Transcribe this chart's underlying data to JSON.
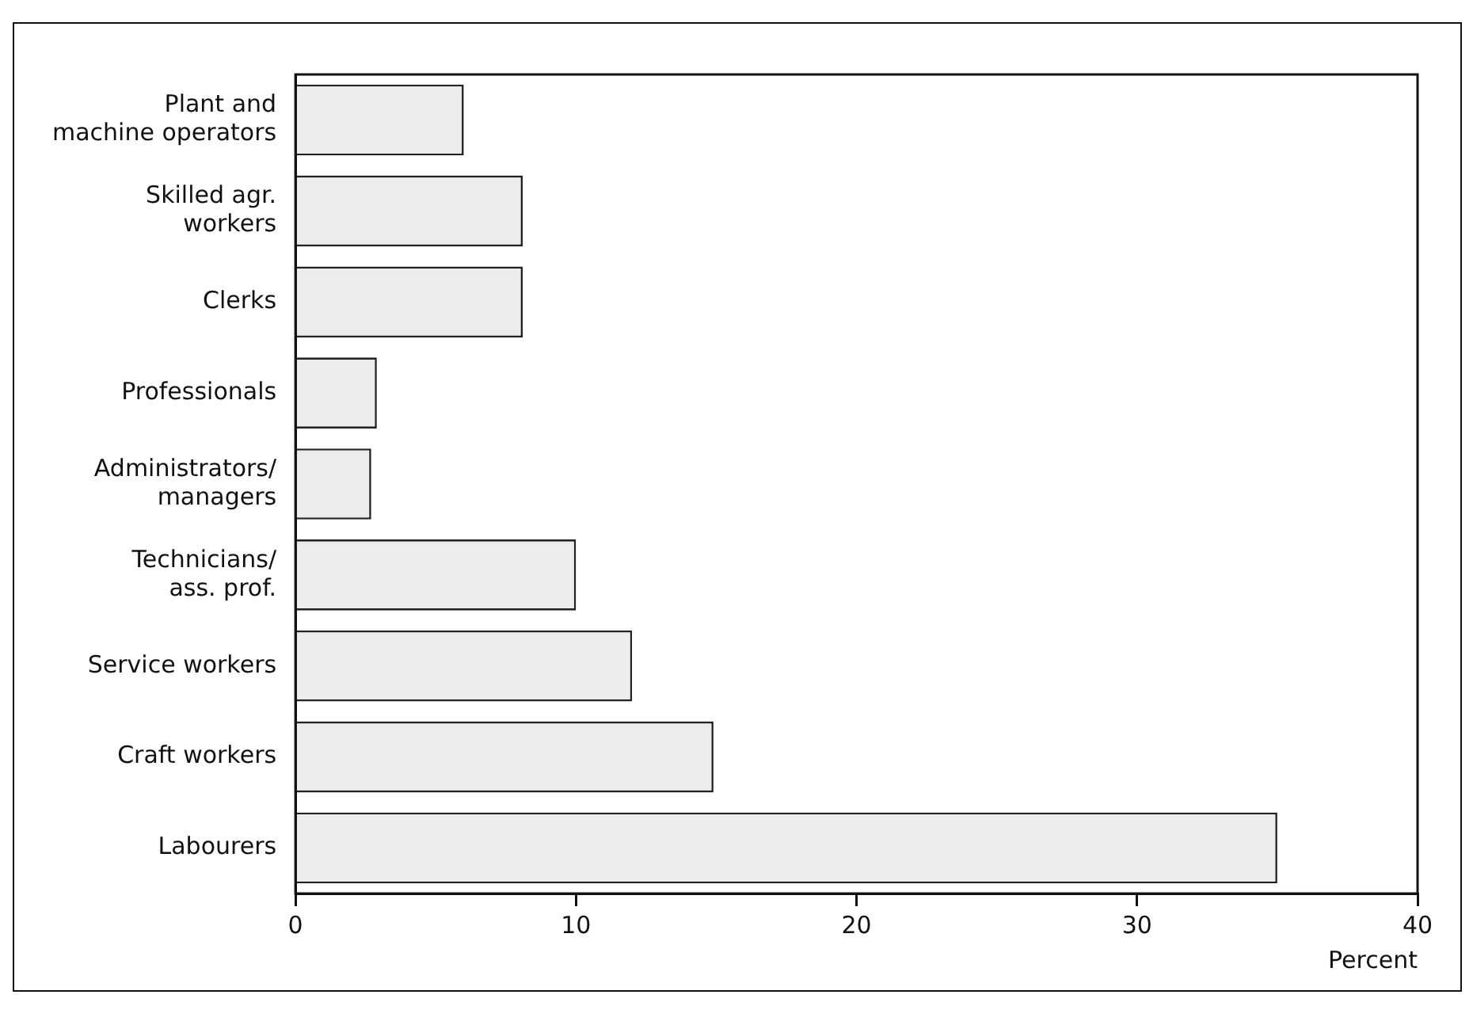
{
  "chart_data": {
    "type": "bar",
    "orientation": "horizontal",
    "categories": [
      "Plant and\nmachine operators",
      "Skilled agr.\nworkers",
      "Clerks",
      "Professionals",
      "Administrators/\nmanagers",
      "Technicians/\nass. prof.",
      "Service workers",
      "Craft workers",
      "Labourers"
    ],
    "values": [
      6.0,
      8.1,
      8.1,
      2.9,
      2.7,
      10.0,
      12.0,
      14.9,
      35.0
    ],
    "color": "#ececec",
    "xlim": [
      0,
      40
    ],
    "xticks": [
      0,
      10,
      20,
      30,
      40
    ],
    "xlabel": "Percent",
    "grid": false,
    "legend": false
  }
}
